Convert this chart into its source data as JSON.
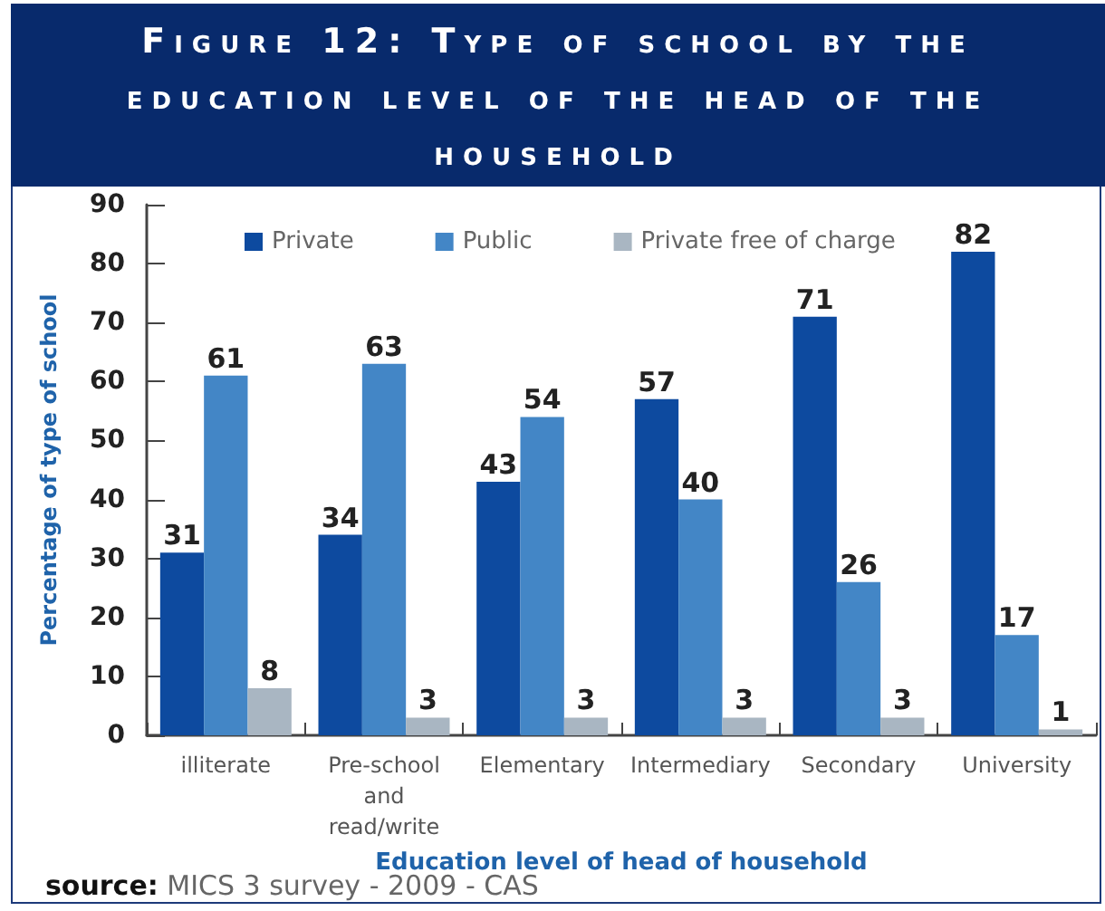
{
  "chart_data": {
    "type": "bar",
    "title": "Figure 12: Type of school by the education level of the head of the household",
    "xlabel": "Education level of head of household",
    "ylabel": "Percentage of type of school",
    "categories": [
      "illiterate",
      "Pre-school and read/write",
      "Elementary",
      "Intermediary",
      "Secondary",
      "University"
    ],
    "series": [
      {
        "name": "Private",
        "color": "#0d4a9f",
        "values": [
          31,
          34,
          43,
          57,
          71,
          82
        ]
      },
      {
        "name": "Public",
        "color": "#4386c6",
        "values": [
          61,
          63,
          54,
          40,
          26,
          17
        ]
      },
      {
        "name": "Private free of charge",
        "color": "#a9b6c2",
        "values": [
          8,
          3,
          3,
          3,
          3,
          1
        ]
      }
    ],
    "ylim": [
      0,
      90
    ],
    "yticks": [
      0,
      10,
      20,
      30,
      40,
      50,
      60,
      70,
      80,
      90
    ],
    "legend": "top",
    "data_labels": true,
    "annotations": [
      "source: MICS 3 survey - 2009 - CAS"
    ]
  }
}
